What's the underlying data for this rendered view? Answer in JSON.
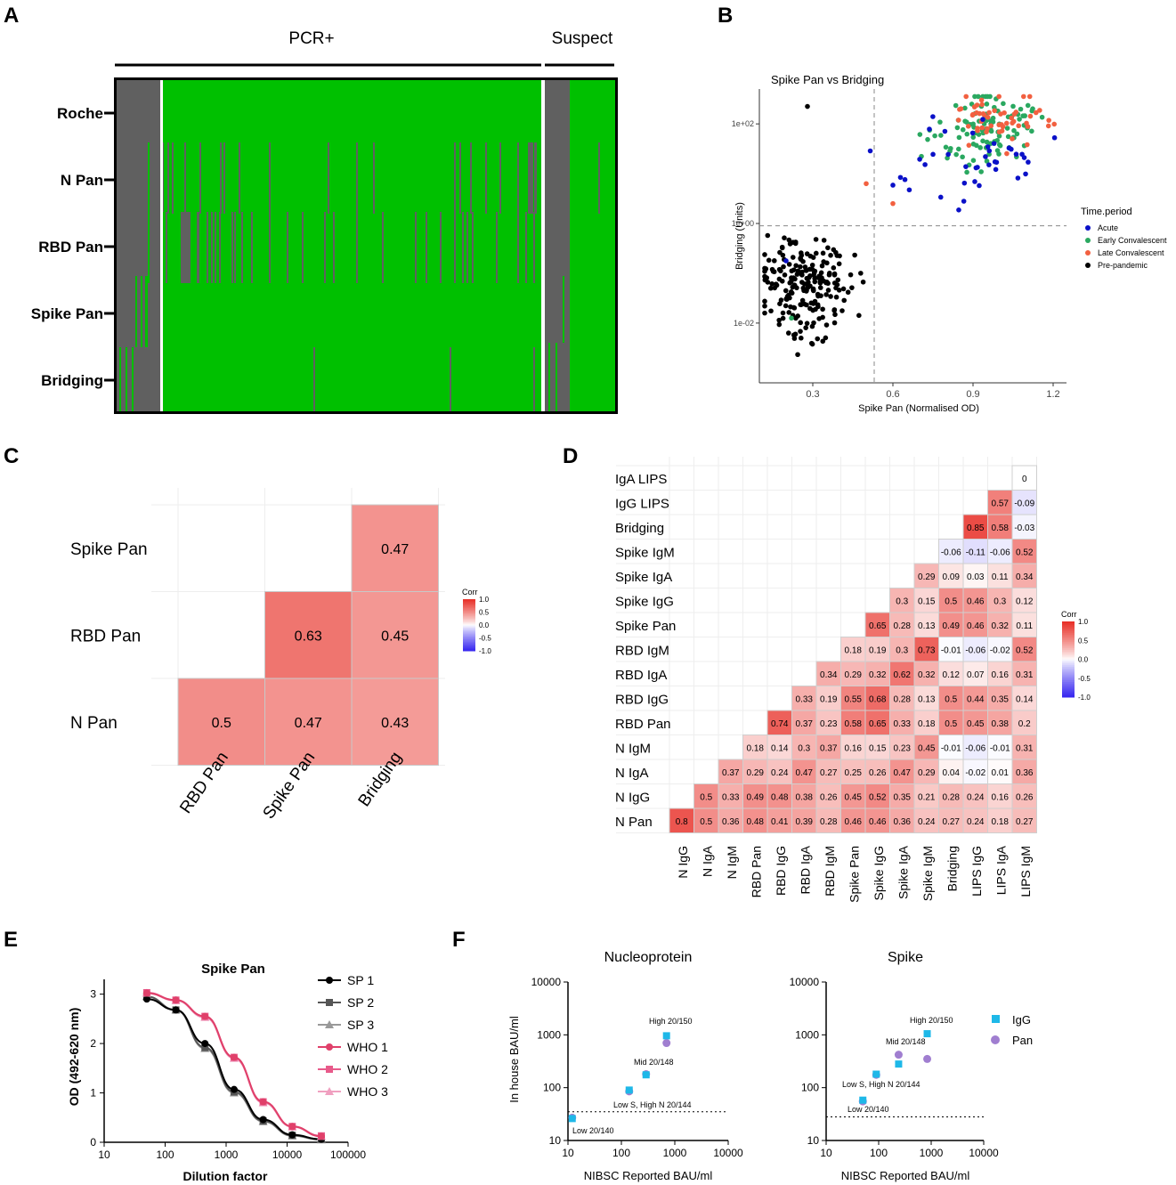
{
  "panel_letters": {
    "A": "A",
    "B": "B",
    "C": "C",
    "D": "D",
    "E": "E",
    "F": "F"
  },
  "colors": {
    "present": "#00c000",
    "absent": "#606060",
    "acute": "#0a10c8",
    "early": "#2aa860",
    "late": "#f26040",
    "prepandemic": "#000000",
    "heat_pos": "#e8322a",
    "heat_neg": "#3a2af0",
    "sp": "#000000",
    "sp2": "#555555",
    "sp3": "#999999",
    "who1": "#e0406a",
    "who2": "#e85a8a",
    "who3": "#f0a0c0",
    "igg": "#1eb8e8",
    "pan": "#a07ed0"
  },
  "chart_data": [
    {
      "panel": "A",
      "type": "heatmap",
      "groups": [
        "PCR+",
        "Suspect"
      ],
      "rows": [
        "Roche",
        "N Pan",
        "RBD Pan",
        "Spike Pan",
        "Bridging"
      ],
      "legend_note": "green = positive, grey = negative"
    },
    {
      "panel": "B",
      "type": "scatter",
      "title": "Spike Pan vs Bridging",
      "xlabel": "Spike Pan (Normalised OD)",
      "ylabel": "Bridging (Units)",
      "xlim": [
        0.1,
        1.25
      ],
      "ylim_log10": [
        -3.2,
        2.7
      ],
      "xticks": [
        "0.3",
        "0.6",
        "0.9",
        "1.2"
      ],
      "yticks": [
        "1e-02",
        "1e+00",
        "1e+02"
      ],
      "xcut": 0.53,
      "ycut": 0.9,
      "legend_title": "Time.period",
      "legend": [
        "Acute",
        "Early Convalescent",
        "Late Convalescent",
        "Pre-pandemic"
      ]
    },
    {
      "panel": "C",
      "type": "heatmap",
      "rows": [
        "Spike Pan",
        "RBD Pan",
        "N Pan"
      ],
      "cols": [
        "RBD Pan",
        "Spike Pan",
        "Bridging"
      ],
      "cells": [
        [
          null,
          null,
          0.47
        ],
        [
          null,
          0.63,
          0.45
        ],
        [
          0.5,
          0.47,
          0.43
        ]
      ],
      "legend_title": "Corr",
      "legend_ticks": [
        "1.0",
        "0.5",
        "0.0",
        "-0.5",
        "-1.0"
      ]
    },
    {
      "panel": "D",
      "type": "heatmap",
      "rows": [
        "IgA LIPS",
        "IgG LIPS",
        "Bridging",
        "Spike IgM",
        "Spike IgA",
        "Spike IgG",
        "Spike Pan",
        "RBD IgM",
        "RBD IgA",
        "RBD IgG",
        "RBD Pan",
        "N IgM",
        "N IgA",
        "N IgG",
        "N Pan"
      ],
      "cols": [
        "N IgG",
        "N IgA",
        "N IgM",
        "RBD Pan",
        "RBD IgG",
        "RBD IgA",
        "RBD IgM",
        "Spike Pan",
        "Spike IgG",
        "Spike IgA",
        "Spike IgM",
        "Bridging",
        "LIPS IgG",
        "LIPS IgA",
        "LIPS IgM"
      ],
      "cells_lower": [
        [
          0
        ],
        [
          0.57,
          -0.09
        ],
        [
          0.85,
          0.58,
          -0.03
        ],
        [
          -0.06,
          -0.11,
          -0.06,
          0.52
        ],
        [
          0.29,
          0.09,
          0.03,
          0.11,
          0.34
        ],
        [
          0.3,
          0.15,
          0.5,
          0.46,
          0.3,
          0.12
        ],
        [
          0.65,
          0.28,
          0.13,
          0.49,
          0.46,
          0.32,
          0.11
        ],
        [
          0.18,
          0.19,
          0.3,
          0.73,
          -0.01,
          -0.06,
          -0.02,
          0.52
        ],
        [
          0.34,
          0.29,
          0.32,
          0.62,
          0.32,
          0.12,
          0.07,
          0.16,
          0.31
        ],
        [
          0.33,
          0.19,
          0.55,
          0.68,
          0.28,
          0.13,
          0.5,
          0.44,
          0.35,
          0.14
        ],
        [
          0.74,
          0.37,
          0.23,
          0.58,
          0.65,
          0.33,
          0.18,
          0.5,
          0.45,
          0.38,
          0.2
        ],
        [
          0.18,
          0.14,
          0.3,
          0.37,
          0.16,
          0.15,
          0.23,
          0.45,
          -0.01,
          -0.06,
          -0.01,
          0.31
        ],
        [
          0.37,
          0.29,
          0.24,
          0.47,
          0.27,
          0.25,
          0.26,
          0.47,
          0.29,
          0.04,
          -0.02,
          0.01,
          0.36
        ],
        [
          0.5,
          0.33,
          0.49,
          0.48,
          0.38,
          0.26,
          0.45,
          0.52,
          0.35,
          0.21,
          0.28,
          0.24,
          0.16,
          0.26
        ],
        [
          0.8,
          0.5,
          0.36,
          0.48,
          0.41,
          0.39,
          0.28,
          0.46,
          0.46,
          0.36,
          0.24,
          0.27,
          0.24,
          0.18,
          0.27
        ]
      ],
      "legend_title": "Corr",
      "legend_ticks": [
        "1.0",
        "0.5",
        "0.0",
        "-0.5",
        "-1.0"
      ]
    },
    {
      "panel": "E",
      "type": "line",
      "title": "Spike Pan",
      "xlabel": "Dilution factor",
      "ylabel": "OD (492-620 nm)",
      "xticks": [
        "10",
        "100",
        "1000",
        "10000",
        "100000"
      ],
      "yticks": [
        "0",
        "1",
        "2",
        "3"
      ],
      "x": [
        50,
        150,
        450,
        1350,
        4050,
        12150,
        36450
      ],
      "series": [
        {
          "name": "SP 1",
          "values": [
            2.9,
            2.68,
            2.0,
            1.07,
            0.46,
            0.15,
            0.06
          ]
        },
        {
          "name": "SP 2",
          "values": [
            2.95,
            2.68,
            1.92,
            1.02,
            0.43,
            0.14,
            0.06
          ]
        },
        {
          "name": "SP 3",
          "values": [
            2.95,
            2.68,
            1.9,
            1.0,
            0.42,
            0.13,
            0.05
          ]
        },
        {
          "name": "WHO 1",
          "values": [
            3.02,
            2.88,
            2.55,
            1.72,
            0.82,
            0.32,
            0.12
          ]
        },
        {
          "name": "WHO 2",
          "values": [
            3.03,
            2.88,
            2.55,
            1.72,
            0.82,
            0.32,
            0.13
          ]
        },
        {
          "name": "WHO 3",
          "values": [
            3.02,
            2.87,
            2.53,
            1.7,
            0.8,
            0.31,
            0.12
          ]
        }
      ]
    },
    {
      "panel": "F",
      "type": "scatter",
      "ylabel": "In house BAU/ml",
      "xlabel": "NIBSC Reported BAU/ml",
      "ticks": [
        "10",
        "100",
        "1000",
        "10000"
      ],
      "legend": [
        "IgG",
        "Pan"
      ],
      "plots": [
        {
          "title": "Nucleoprotein",
          "cutoff": 35,
          "igg": [
            [
              12,
              26
            ],
            [
              140,
              90
            ],
            [
              290,
              175
            ],
            [
              700,
              960
            ]
          ],
          "pan": [
            [
              12,
              27
            ],
            [
              140,
              85
            ],
            [
              290,
              180
            ],
            [
              700,
              700
            ]
          ],
          "labels": [
            "Low 20/140",
            "Low S, High N 20/144",
            "Mid 20/148",
            "High 20/150"
          ]
        },
        {
          "title": "Spike",
          "cutoff": 28,
          "igg": [
            [
              50,
              58
            ],
            [
              90,
              180
            ],
            [
              240,
              280
            ],
            [
              840,
              1050
            ]
          ],
          "pan": [
            [
              50,
              55
            ],
            [
              90,
              175
            ],
            [
              240,
              420
            ],
            [
              840,
              350
            ]
          ],
          "labels": [
            "Low 20/140",
            "Low S, High N 20/144",
            "Mid 20/148",
            "High 20/150"
          ]
        }
      ]
    }
  ]
}
